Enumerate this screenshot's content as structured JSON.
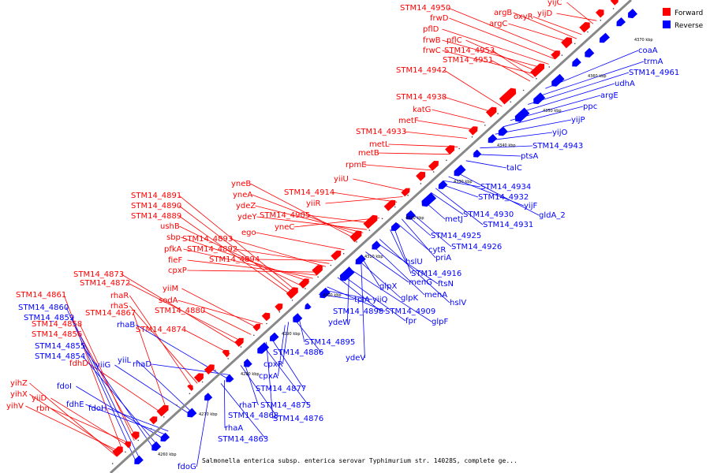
{
  "legend": {
    "forward_label": "Forward",
    "reverse_label": "Reverse",
    "forward_color": "#ff0000",
    "reverse_color": "#0000ff"
  },
  "caption": "Salmonella enterica subsp. enterica serovar Typhimurium str. 14028S, complete ge...",
  "kbp_marks": [
    "4260 kbp",
    "4270 kbp",
    "4280 kbp",
    "4290 kbp",
    "4300 kbp",
    "4310 kbp",
    "4320 kbp",
    "4330 kbp",
    "4340 kbp",
    "4350 kbp",
    "4360 kbp",
    "4370 kbp"
  ],
  "forward_genes": [
    "yihZ",
    "yihX",
    "yihV",
    "yiiD",
    "rbn",
    "fdhD",
    "STM14_4861",
    "STM14_4860",
    "STM14_4859",
    "STM14_4858",
    "STM14_4856",
    "rhaR",
    "rhaS",
    "STM14_4867",
    "STM14_4873",
    "STM14_4872",
    "yiiM",
    "sodA",
    "STM14_4880",
    "STM14_4874",
    "STM14_4891",
    "STM14_4890",
    "STM14_4889",
    "ushB",
    "sbp",
    "pfkA",
    "fieF",
    "cpxP",
    "STM14_4893",
    "STM14_4892",
    "STM14_4894",
    "yneB",
    "yneA",
    "ydeZ",
    "ydeY",
    "ego",
    "STM14_4905",
    "yneC",
    "STM14_4914",
    "yiiR",
    "yiiU",
    "rpmE",
    "metB",
    "metL",
    "STM14_4933",
    "metF",
    "katG",
    "STM14_4938",
    "STM14_4942",
    "STM14_4950",
    "frwD",
    "pflD",
    "frwB",
    "pflC",
    "frwC",
    "STM14_4953",
    "STM14_4951",
    "argB",
    "argC",
    "oxyR",
    "yijC",
    "yijD"
  ],
  "reverse_genes": [
    "STM14_4860",
    "STM14_4859",
    "STM14_4855",
    "STM14_4854",
    "fdoI",
    "fdhE",
    "fdoH",
    "yiiG",
    "yiiL",
    "rhaB",
    "rhaD",
    "fdoG",
    "STM14_4863",
    "rhaA",
    "rhaT",
    "STM14_4868",
    "STM14_4875",
    "STM14_4876",
    "STM14_4877",
    "cpxA",
    "cpxR",
    "STM14_4886",
    "STM14_4895",
    "ydeV",
    "ydeW",
    "STM14_4898",
    "fpr",
    "tpiA",
    "yiiQ",
    "STM14_4909",
    "glpF",
    "glpX",
    "glpK",
    "menG",
    "menA",
    "ftsN",
    "hslV",
    "hslU",
    "STM14_4916",
    "cytR",
    "priA",
    "STM14_4925",
    "STM14_4926",
    "metJ",
    "STM14_4930",
    "STM14_4931",
    "STM14_4932",
    "STM14_4934",
    "yijF",
    "gldA_2",
    "talC",
    "ptsA",
    "STM14_4943",
    "yijO",
    "yijP",
    "ppc",
    "argE",
    "udhA",
    "STM14_4961",
    "trmA",
    "coaA"
  ]
}
